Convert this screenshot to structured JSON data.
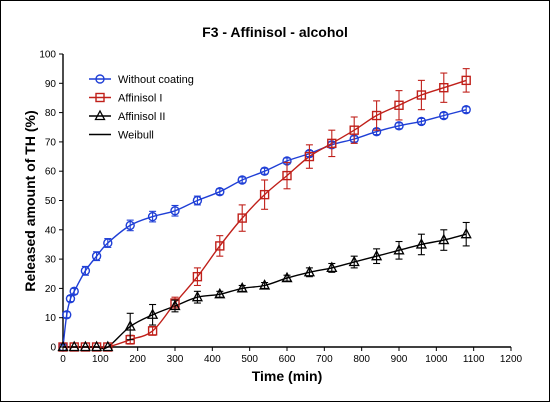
{
  "chart_data": {
    "type": "scatter",
    "title": "F3 - Affinisol - alcohol",
    "xlabel": "Time (min)",
    "ylabel": "Released amount of TH (%)",
    "xlim": [
      0,
      1200
    ],
    "ylim": [
      0,
      100
    ],
    "xticks": [
      0,
      100,
      200,
      300,
      400,
      500,
      600,
      700,
      800,
      900,
      1000,
      1100,
      1200
    ],
    "yticks": [
      0,
      10,
      20,
      30,
      40,
      50,
      60,
      70,
      80,
      90,
      100
    ],
    "grid": false,
    "legend_position": "top-left",
    "series": [
      {
        "name": "Without coating",
        "marker": "circle",
        "color": "#1f3fd6",
        "x": [
          0,
          10,
          20,
          30,
          60,
          90,
          120,
          180,
          240,
          300,
          360,
          420,
          480,
          540,
          600,
          660,
          720,
          780,
          840,
          900,
          960,
          1020,
          1080
        ],
        "y": [
          0,
          11,
          16.5,
          19,
          26,
          31,
          35.5,
          41.5,
          44.5,
          46.5,
          50,
          53,
          57,
          60,
          63.5,
          66,
          69,
          71,
          73.5,
          75.5,
          77,
          79,
          81
        ],
        "err": [
          0,
          1,
          1,
          1,
          1.5,
          1.5,
          1.5,
          1.8,
          1.8,
          1.8,
          1.5,
          1,
          1,
          1,
          1,
          1,
          1,
          1,
          1,
          1,
          1,
          1,
          1
        ]
      },
      {
        "name": "Affinisol I",
        "marker": "square",
        "color": "#c0201a",
        "x": [
          0,
          30,
          60,
          90,
          120,
          180,
          240,
          300,
          360,
          420,
          480,
          540,
          600,
          660,
          720,
          780,
          840,
          900,
          960,
          1020,
          1080
        ],
        "y": [
          0,
          0,
          0,
          0,
          0,
          2.5,
          5.5,
          15,
          24,
          34.5,
          44,
          52,
          58.5,
          65,
          69.5,
          74,
          79,
          82.5,
          86,
          88.5,
          91
        ],
        "err": [
          0,
          0,
          0,
          0,
          0,
          1.5,
          1.5,
          2,
          3,
          3.5,
          4.5,
          5,
          4.5,
          4,
          4.5,
          4.5,
          5,
          5,
          5,
          5,
          4
        ]
      },
      {
        "name": "Affinisol II",
        "marker": "triangle",
        "color": "#000000",
        "x": [
          0,
          30,
          60,
          90,
          120,
          180,
          240,
          300,
          360,
          420,
          480,
          540,
          600,
          660,
          720,
          780,
          840,
          900,
          960,
          1020,
          1080
        ],
        "y": [
          0,
          0,
          0,
          0,
          0,
          7,
          11,
          14,
          17,
          18,
          20,
          21,
          23.5,
          25.5,
          27,
          29,
          31,
          33,
          35,
          36.5,
          38.5
        ],
        "err": [
          0,
          0,
          0,
          0,
          0,
          4.5,
          3.5,
          2,
          2,
          1,
          1,
          1,
          1,
          1.5,
          1.5,
          2,
          2.5,
          3,
          3.5,
          3.5,
          4
        ]
      },
      {
        "name": "Weibull",
        "marker": "line",
        "color": "#000000"
      }
    ]
  }
}
